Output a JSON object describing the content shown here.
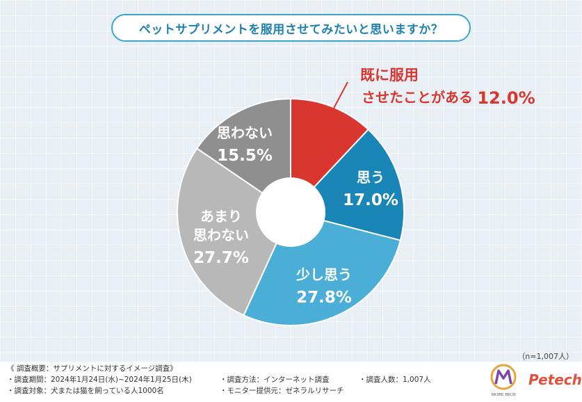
{
  "title": "ペットサプリメントを服用させてみたいと思いますか？",
  "chart_data": {
    "type": "pie",
    "donut": true,
    "slices": [
      {
        "label_lines": [
          "既に服用",
          "させたことがある"
        ],
        "value": 12.0,
        "value_text": "12.0%",
        "color": "#d9362f"
      },
      {
        "label_lines": [
          "思う"
        ],
        "value": 17.0,
        "value_text": "17.0%",
        "color": "#1a86b8"
      },
      {
        "label_lines": [
          "少し思う"
        ],
        "value": 27.8,
        "value_text": "27.8%",
        "color": "#4aaed6"
      },
      {
        "label_lines": [
          "あまり",
          "思わない"
        ],
        "value": 27.7,
        "value_text": "27.7%",
        "color": "#b8b8b8"
      },
      {
        "label_lines": [
          "思わない"
        ],
        "value": 15.5,
        "value_text": "15.5%",
        "color": "#8f8f8f"
      }
    ]
  },
  "sample_note": "（n=1,007人）",
  "footer": {
    "overview": "《 調査概要：サプリメントに対するイメージ調査》",
    "period": "・調査期間：2024年1月24日(水)~2024年1月25日(木)",
    "target": "・調査対象：犬または猫を飼っている人1000名",
    "method": "・調査方法：インターネット調査",
    "provider": "・モニター提供元：ゼネラルリサーチ",
    "count": "・調査人数：1,007人"
  },
  "logos": {
    "more_rich_text": "MORE RICH",
    "petech": "Petech"
  }
}
